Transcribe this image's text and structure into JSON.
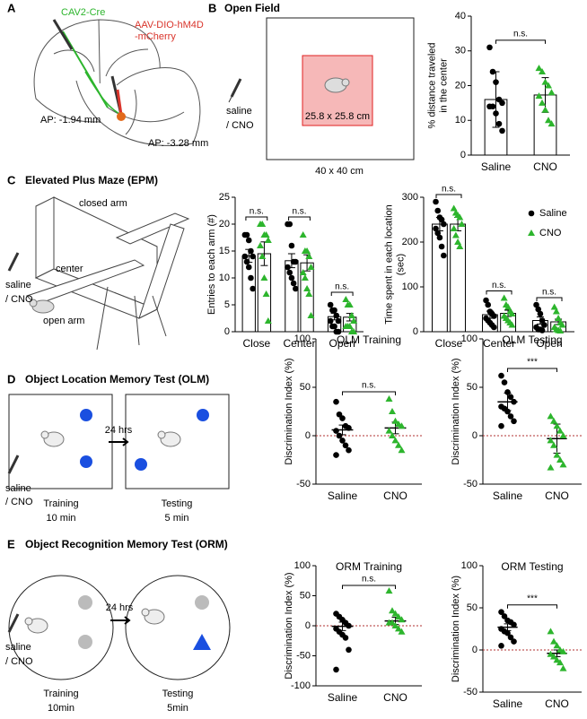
{
  "figure": {
    "panel_labels": [
      "A",
      "B",
      "C",
      "D",
      "E"
    ],
    "A": {
      "virus1": "CAV2-Cre",
      "virus2": [
        "AAV-DIO-hM4D",
        "-mCherry"
      ],
      "ap1": "AP: -1.94 mm",
      "ap2": "AP: -3.28 mm"
    },
    "B": {
      "title": "Open Field",
      "inner": "25.8 x 25.8 cm",
      "outer": "40 x 40 cm",
      "treatment": [
        "saline",
        "/ CNO"
      ]
    },
    "C": {
      "title": "Elevated Plus Maze (EPM)",
      "closed": "closed arm",
      "center": "center",
      "open": "open arm",
      "treatment": [
        "saline",
        "/ CNO"
      ]
    },
    "D": {
      "title": "Object Location Memory Test (OLM)",
      "delay": "24 hrs",
      "training": [
        "Training",
        "10 min"
      ],
      "testing": [
        "Testing",
        "5 min"
      ],
      "treatment": [
        "saline",
        "/ CNO"
      ]
    },
    "E": {
      "title": "Object Recognition Memory Test (ORM)",
      "delay": "24 hrs",
      "training": [
        "Training",
        "10min"
      ],
      "testing": [
        "Testing",
        "5min"
      ],
      "treatment": [
        "saline",
        "/ CNO"
      ]
    }
  },
  "chart_data": [
    {
      "type": "dot",
      "ylabel": [
        "% distance traveled",
        "in the center"
      ],
      "categories": [
        "Saline",
        "CNO"
      ],
      "ylim": [
        0,
        40
      ],
      "yticks": [
        0,
        10,
        20,
        30,
        40
      ],
      "bars": true,
      "zero_line": false,
      "significance": [
        "n.s."
      ],
      "series": [
        {
          "colors": [
            "#000000",
            "#2db52d"
          ],
          "markers": [
            "circle",
            "triangle"
          ],
          "values": [
            16,
            17.3
          ],
          "errors": [
            8,
            5
          ],
          "points": [
            [
              31,
              24,
              21,
              16,
              15,
              14,
              14,
              12,
              9,
              7
            ],
            [
              25,
              24,
              21,
              20,
              18,
              17,
              15,
              13,
              10,
              9
            ]
          ]
        }
      ]
    },
    {
      "type": "dot",
      "ylabel": [
        "Entries to each arm (#)"
      ],
      "categories": [
        "Close",
        "Center",
        "Open"
      ],
      "ylim": [
        0,
        25
      ],
      "yticks": [
        0,
        5,
        10,
        15,
        20,
        25
      ],
      "bars": true,
      "zero_line": false,
      "significance": [
        "n.s.",
        "n.s.",
        "n.s."
      ],
      "series": [
        {
          "color": "#000000",
          "marker": "circle",
          "values": [
            14.1,
            13.2,
            2.8
          ],
          "errors": [
            1.2,
            1.3,
            0.6
          ],
          "points": [
            [
              18,
              18,
              17,
              15,
              14,
              14,
              13,
              12,
              10,
              8
            ],
            [
              20,
              20,
              16,
              13,
              13,
              12,
              11,
              10,
              9,
              8
            ],
            [
              5,
              4,
              4,
              3,
              2,
              2,
              1,
              1,
              0,
              0
            ]
          ]
        },
        {
          "color": "#2db52d",
          "marker": "triangle",
          "values": [
            14.5,
            12.8,
            2.7
          ],
          "errors": [
            2.2,
            1.5,
            0.7
          ],
          "points": [
            [
              20,
              20,
              18,
              18,
              17,
              16,
              14,
              10,
              7,
              2
            ],
            [
              18,
              15,
              15,
              14,
              12,
              11,
              10,
              8,
              7,
              3
            ],
            [
              6,
              5,
              5,
              3,
              2,
              1,
              1,
              1,
              0,
              0
            ]
          ]
        }
      ]
    },
    {
      "type": "dot",
      "ylabel": [
        "Time spent in each location",
        "(sec)"
      ],
      "categories": [
        "Close",
        "Center",
        "Open"
      ],
      "ylim": [
        0,
        300
      ],
      "yticks": [
        0,
        100,
        200,
        300
      ],
      "bars": true,
      "zero_line": false,
      "legend": "upper right",
      "significance": [
        "n.s.",
        "n.s.",
        "n.s."
      ],
      "series": [
        {
          "name": "Saline",
          "color": "#000000",
          "marker": "circle",
          "values": [
            240,
            38,
            25
          ],
          "errors": [
            15,
            8,
            8
          ],
          "points": [
            [
              290,
              270,
              255,
              250,
              240,
              230,
              220,
              210,
              190,
              170
            ],
            [
              70,
              60,
              45,
              40,
              35,
              30,
              25,
              20,
              15,
              10
            ],
            [
              60,
              50,
              40,
              25,
              15,
              10,
              5,
              5,
              3
            ]
          ]
        },
        {
          "name": "CNO",
          "color": "#2db52d",
          "marker": "triangle",
          "values": [
            240,
            41,
            22
          ],
          "errors": [
            15,
            7,
            6
          ],
          "points": [
            [
              275,
              265,
              260,
              255,
              240,
              230,
              215,
              200,
              190
            ],
            [
              75,
              60,
              55,
              45,
              40,
              35,
              30,
              25,
              20,
              15
            ],
            [
              55,
              45,
              30,
              20,
              15,
              10,
              5,
              3,
              2
            ]
          ]
        }
      ]
    },
    {
      "type": "dot",
      "title": "OLM Training",
      "ylabel": [
        "Discrimination Index (%)"
      ],
      "categories": [
        "Saline",
        "CNO"
      ],
      "ylim": [
        -50,
        100
      ],
      "yticks": [
        -50,
        0,
        50,
        100
      ],
      "bars": false,
      "zero_line": true,
      "significance": [
        "n.s."
      ],
      "series": [
        {
          "colors": [
            "#000000",
            "#2db52d"
          ],
          "markers": [
            "circle",
            "triangle"
          ],
          "values": [
            6,
            8
          ],
          "errors": [
            5,
            6
          ],
          "points": [
            [
              35,
              22,
              18,
              10,
              8,
              5,
              0,
              -5,
              -10,
              -15,
              -20
            ],
            [
              38,
              25,
              15,
              12,
              10,
              5,
              0,
              -5,
              -10,
              -15
            ]
          ]
        }
      ]
    },
    {
      "type": "dot",
      "title": "OLM Testing",
      "ylabel": [
        "Discrimination Index (%)"
      ],
      "categories": [
        "Saline",
        "CNO"
      ],
      "ylim": [
        -50,
        100
      ],
      "yticks": [
        -50,
        0,
        50,
        100
      ],
      "bars": false,
      "zero_line": true,
      "significance": [
        "***"
      ],
      "series": [
        {
          "colors": [
            "#000000",
            "#2db52d"
          ],
          "markers": [
            "circle",
            "triangle"
          ],
          "values": [
            35,
            -3
          ],
          "errors": [
            9,
            15
          ],
          "points": [
            [
              62,
              55,
              45,
              40,
              35,
              30,
              28,
              25,
              20,
              15,
              10
            ],
            [
              20,
              15,
              10,
              5,
              0,
              -5,
              -10,
              -20,
              -25,
              -30,
              -33
            ]
          ]
        }
      ]
    },
    {
      "type": "dot",
      "title": "ORM Training",
      "ylabel": [
        "Discrimination Index (%)"
      ],
      "categories": [
        "Saline",
        "CNO"
      ],
      "ylim": [
        -100,
        100
      ],
      "yticks": [
        -100,
        -50,
        0,
        50,
        100
      ],
      "bars": false,
      "zero_line": true,
      "significance": [
        "n.s."
      ],
      "series": [
        {
          "colors": [
            "#000000",
            "#2db52d"
          ],
          "markers": [
            "circle",
            "triangle"
          ],
          "values": [
            -1,
            8
          ],
          "errors": [
            7,
            6
          ],
          "points": [
            [
              20,
              15,
              10,
              5,
              0,
              -5,
              -10,
              -15,
              -20,
              -40,
              -73
            ],
            [
              58,
              25,
              20,
              15,
              10,
              5,
              5,
              0,
              -5,
              -10
            ]
          ]
        }
      ]
    },
    {
      "type": "dot",
      "title": "ORM Testing",
      "ylabel": [
        "Discrimination Index (%)"
      ],
      "categories": [
        "Saline",
        "CNO"
      ],
      "ylim": [
        -50,
        100
      ],
      "yticks": [
        -50,
        0,
        50,
        100
      ],
      "bars": false,
      "zero_line": true,
      "significance": [
        "***"
      ],
      "series": [
        {
          "colors": [
            "#000000",
            "#2db52d"
          ],
          "markers": [
            "circle",
            "triangle"
          ],
          "values": [
            27,
            -4
          ],
          "errors": [
            4,
            4
          ],
          "points": [
            [
              45,
              40,
              35,
              33,
              30,
              25,
              22,
              20,
              15,
              10,
              5
            ],
            [
              22,
              10,
              5,
              0,
              -2,
              -5,
              -8,
              -12,
              -15,
              -22
            ]
          ]
        }
      ]
    }
  ]
}
